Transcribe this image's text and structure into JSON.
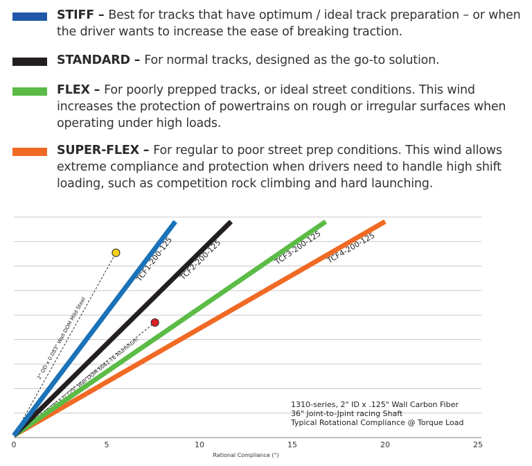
{
  "legend": [
    {
      "name": "STIFF",
      "dash": " – ",
      "text": "Best for tracks that have optimum / ideal track preparation – or when the driver wants to increase the ease of breaking traction.",
      "color": "#2057a8"
    },
    {
      "name": "STANDARD",
      "dash": " – ",
      "text": "For normal tracks, designed as the go-to solution.",
      "color": "#231f20"
    },
    {
      "name": "FLEX",
      "dash": " – ",
      "text": "For poorly prepped tracks, or ideal street conditions. This wind increases the protection of powertrains on rough or irregular surfaces when operating under high loads.",
      "color": "#5bbb46"
    },
    {
      "name": "SUPER-FLEX",
      "dash": " – ",
      "text": "For regular to poor street prep conditions. This wind allows extreme compliance and protection when drivers need to handle high shift loading, such as competition rock climbing and hard launching.",
      "color": "#f06a25"
    }
  ],
  "chart_data": {
    "type": "line",
    "xlabel": "Rational Compliance (°)",
    "ylabel": "",
    "xlim": [
      0,
      25
    ],
    "ylim": [
      0,
      9
    ],
    "xticks": [
      "0",
      "5",
      "10",
      "15",
      "20",
      "25"
    ],
    "grid": "horizontal",
    "series": [
      {
        "name": "TCF1-200-125",
        "color": "#1b72b8",
        "x": [
          0,
          8.7
        ],
        "y": [
          0,
          8.9
        ]
      },
      {
        "name": "TCF2-200-125",
        "color": "#231f20",
        "x": [
          0,
          11.7
        ],
        "y": [
          0,
          8.9
        ]
      },
      {
        "name": "TCF3-200-125",
        "color": "#5bbb46",
        "x": [
          0,
          16.8
        ],
        "y": [
          0,
          8.9
        ]
      },
      {
        "name": "TCF4-200-125",
        "color": "#f06a25",
        "x": [
          0,
          20.0
        ],
        "y": [
          0,
          8.9
        ]
      }
    ],
    "reference_points": [
      {
        "label": "2\" OD x 0.083\" Wall DOM Mild Steel",
        "color": "#f7d117",
        "x": 5.5,
        "y": 7.6
      },
      {
        "label": "2\" OD x 0.125\" Wall DOM 6061-T6 Aluminum",
        "color": "#e0202a",
        "x": 7.6,
        "y": 4.7
      }
    ],
    "annotation": [
      "1310-series, 2\" ID x .125\" Wall Carbon Fiber",
      "36\" Joint-to-Jpint racing Shaft",
      "Typical Rotational Compliance @ Torque Load"
    ]
  }
}
